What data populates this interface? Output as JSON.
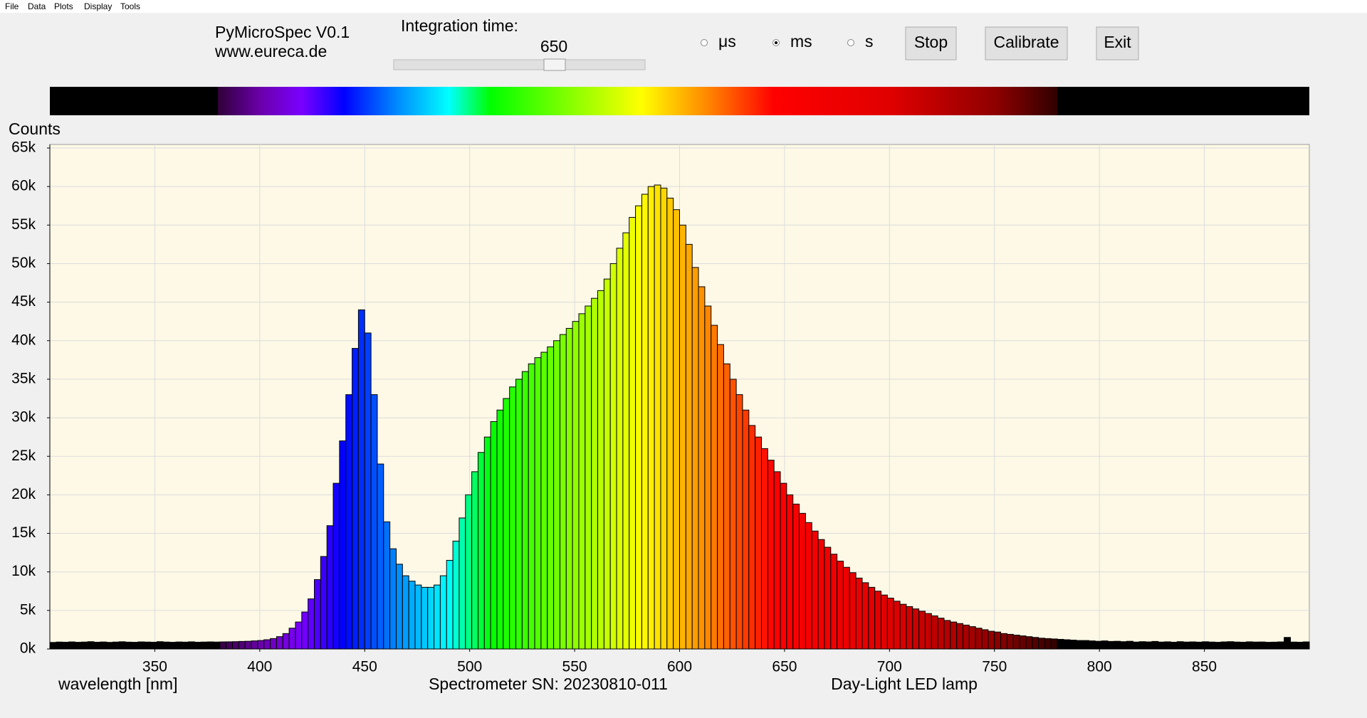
{
  "menu": [
    "File",
    "Data",
    "Plots",
    "Display",
    "Tools"
  ],
  "header": {
    "app_name": "PyMicroSpec V0.1",
    "website": "www.eureca.de"
  },
  "integration_time": {
    "label": "Integration time:",
    "value": 650
  },
  "units": {
    "options": [
      "μs",
      "ms",
      "s"
    ],
    "selected_index": 1
  },
  "buttons": [
    "Stop",
    "Calibrate",
    "Exit"
  ],
  "chart_data": {
    "type": "histogram",
    "y_label": "Counts",
    "x_label": "wavelength [nm]",
    "annotations": [
      "Spectrometer SN: 20230810-011",
      "Day-Light LED lamp"
    ],
    "xlim": [
      300,
      900
    ],
    "xticks": [
      350,
      400,
      450,
      500,
      550,
      600,
      650,
      700,
      750,
      800,
      850
    ],
    "ylim": [
      0,
      65000
    ],
    "yticks": [
      {
        "value": 0,
        "label": "0k"
      },
      {
        "value": 5000,
        "label": "5k"
      },
      {
        "value": 10000,
        "label": "10k"
      },
      {
        "value": 15000,
        "label": "15k"
      },
      {
        "value": 20000,
        "label": "20k"
      },
      {
        "value": 25000,
        "label": "25k"
      },
      {
        "value": 30000,
        "label": "30k"
      },
      {
        "value": 35000,
        "label": "35k"
      },
      {
        "value": 40000,
        "label": "40k"
      },
      {
        "value": 45000,
        "label": "45k"
      },
      {
        "value": 50000,
        "label": "50k"
      },
      {
        "value": 55000,
        "label": "55k"
      },
      {
        "value": 60000,
        "label": "60k"
      },
      {
        "value": 65000,
        "label": "65k"
      }
    ],
    "grid": true,
    "edge_color": "#000000",
    "outside_color": "#000000",
    "color_stops": [
      {
        "value": 380,
        "color": "#300038"
      },
      {
        "value": 400,
        "color": "#6a00a8"
      },
      {
        "value": 420,
        "color": "#7a00ff"
      },
      {
        "value": 440,
        "color": "#0000ff"
      },
      {
        "value": 465,
        "color": "#0088ff"
      },
      {
        "value": 490,
        "color": "#00ffff"
      },
      {
        "value": 510,
        "color": "#00ff00"
      },
      {
        "value": 582,
        "color": "#ffff00"
      },
      {
        "value": 615,
        "color": "#ff8000"
      },
      {
        "value": 645,
        "color": "#ff0000"
      },
      {
        "value": 700,
        "color": "#e00000"
      },
      {
        "value": 750,
        "color": "#900000"
      },
      {
        "value": 780,
        "color": "#300000"
      }
    ],
    "bins": [
      300,
      303,
      306,
      309,
      312,
      315,
      318,
      321,
      324,
      327,
      330,
      333,
      336,
      339,
      342,
      345,
      348,
      351,
      354,
      357,
      360,
      363,
      366,
      369,
      372,
      375,
      378,
      381,
      384,
      387,
      390,
      393,
      396,
      399,
      402,
      405,
      408,
      411,
      414,
      417,
      420,
      423,
      426,
      429,
      432,
      435,
      438,
      441,
      444,
      447,
      450,
      453,
      456,
      459,
      462,
      465,
      468,
      471,
      474,
      477,
      480,
      483,
      486,
      489,
      492,
      495,
      498,
      501,
      504,
      507,
      510,
      513,
      516,
      519,
      522,
      525,
      528,
      531,
      534,
      537,
      540,
      543,
      546,
      549,
      552,
      555,
      558,
      561,
      564,
      567,
      570,
      573,
      576,
      579,
      582,
      585,
      588,
      591,
      594,
      597,
      600,
      603,
      606,
      609,
      612,
      615,
      618,
      621,
      624,
      627,
      630,
      633,
      636,
      639,
      642,
      645,
      648,
      651,
      654,
      657,
      660,
      663,
      666,
      669,
      672,
      675,
      678,
      681,
      684,
      687,
      690,
      693,
      696,
      699,
      702,
      705,
      708,
      711,
      714,
      717,
      720,
      723,
      726,
      729,
      732,
      735,
      738,
      741,
      744,
      747,
      750,
      753,
      756,
      759,
      762,
      765,
      768,
      771,
      774,
      777,
      780,
      783,
      786,
      789,
      792,
      795,
      798,
      801,
      804,
      807,
      810,
      813,
      816,
      819,
      822,
      825,
      828,
      831,
      834,
      837,
      840,
      843,
      846,
      849,
      852,
      855,
      858,
      861,
      864,
      867,
      870,
      873,
      876,
      879,
      882,
      885,
      888,
      891,
      894,
      897,
      900
    ],
    "counts": [
      850,
      900,
      880,
      920,
      870,
      900,
      950,
      880,
      910,
      860,
      900,
      940,
      890,
      870,
      920,
      900,
      880,
      950,
      900,
      870,
      910,
      890,
      930,
      880,
      900,
      920,
      900,
      920,
      930,
      950,
      980,
      1000,
      1050,
      1100,
      1200,
      1350,
      1600,
      2000,
      2700,
      3500,
      4800,
      6500,
      9000,
      12000,
      16000,
      21500,
      27000,
      33000,
      39000,
      44000,
      41000,
      33000,
      24000,
      16500,
      13000,
      11000,
      9500,
      8800,
      8300,
      8000,
      8000,
      8300,
      9500,
      11500,
      14000,
      17000,
      20000,
      23000,
      25500,
      27500,
      29500,
      31000,
      32500,
      34000,
      35000,
      36000,
      37000,
      37800,
      38500,
      39200,
      40000,
      40800,
      41600,
      42500,
      43500,
      44500,
      45500,
      46500,
      48000,
      50000,
      52000,
      54000,
      56000,
      57500,
      59000,
      60000,
      60200,
      59800,
      58500,
      57000,
      55000,
      52500,
      49500,
      47000,
      44500,
      42000,
      39500,
      37000,
      35000,
      33000,
      31000,
      29000,
      27500,
      26000,
      24500,
      23000,
      21500,
      20000,
      18800,
      17600,
      16400,
      15300,
      14200,
      13200,
      12300,
      11400,
      10600,
      9900,
      9200,
      8600,
      8000,
      7500,
      7000,
      6600,
      6200,
      5800,
      5500,
      5200,
      4900,
      4600,
      4300,
      4000,
      3700,
      3500,
      3300,
      3100,
      2900,
      2700,
      2500,
      2300,
      2200,
      2000,
      1900,
      1800,
      1700,
      1600,
      1500,
      1400,
      1350,
      1300,
      1250,
      1200,
      1150,
      1100,
      1100,
      1050,
      1000,
      1050,
      980,
      1000,
      950,
      1000,
      900,
      950,
      920,
      980,
      900,
      930,
      880,
      950,
      900,
      920,
      890,
      940,
      900,
      870,
      920,
      950,
      900,
      880,
      930,
      900,
      910,
      870,
      890,
      920,
      1500,
      900,
      880,
      920
    ]
  }
}
